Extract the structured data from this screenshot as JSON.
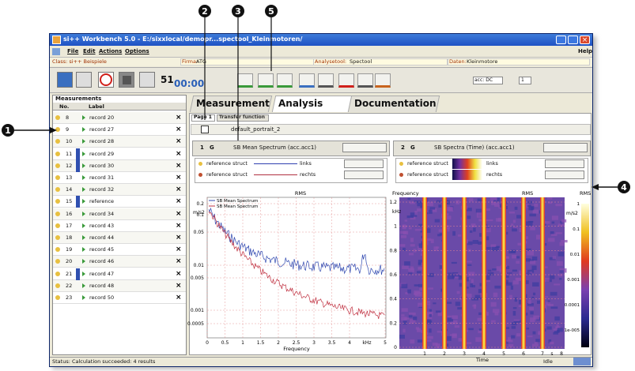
{
  "callouts": [
    "1",
    "2",
    "3",
    "4",
    "5"
  ],
  "window": {
    "title": "si++ Workbench 5.0 - E:/sixxlocal/demopr...spectool_Kleinmotoren/",
    "menu": [
      "File",
      "Edit",
      "Actions",
      "Options"
    ],
    "help": "Help"
  },
  "info": {
    "class": "Class: si++ Beispiele",
    "firma_label": "Firma:",
    "firma": "ATG",
    "analysetool_label": "Analysetool:",
    "analysetool": "Spectool",
    "daten_label": "Daten:",
    "daten": "Kleinmotore"
  },
  "toolbar": {
    "counter": "51",
    "time": "00:00",
    "acc": "acc: DC",
    "channel": "1"
  },
  "measurements": {
    "title": "Measurements",
    "headers": [
      "No.",
      "Label"
    ],
    "rows": [
      [
        "8",
        "record 20"
      ],
      [
        "9",
        "record 27"
      ],
      [
        "10",
        "record 28"
      ],
      [
        "11",
        "record 29"
      ],
      [
        "12",
        "record 30"
      ],
      [
        "13",
        "record 31"
      ],
      [
        "14",
        "record 32"
      ],
      [
        "15",
        "reference"
      ],
      [
        "16",
        "record 34"
      ],
      [
        "17",
        "record 43"
      ],
      [
        "18",
        "record 44"
      ],
      [
        "19",
        "record 45"
      ],
      [
        "20",
        "record 46"
      ],
      [
        "21",
        "record 47"
      ],
      [
        "22",
        "record 48"
      ],
      [
        "23",
        "record 50"
      ]
    ]
  },
  "tabs": [
    "Measurement",
    "Analysis",
    "Documentation"
  ],
  "subtabs": [
    "Page 1",
    "Transfer function"
  ],
  "page_name": "default_portrait_2",
  "panels": [
    {
      "number": "1",
      "mode": "G",
      "title": "SB Mean Spectrum (acc.acc1)",
      "rows": [
        {
          "source": "reference struct",
          "channel": "links"
        },
        {
          "source": "reference struct",
          "channel": "rechts"
        }
      ]
    },
    {
      "number": "2",
      "mode": "G",
      "title": "SB Spectra (Time) (acc.acc1)",
      "rows": [
        {
          "source": "reference struct",
          "channel": "links"
        },
        {
          "source": "reference struct",
          "channel": "rechts"
        }
      ]
    }
  ],
  "spectrum_plot": {
    "legend": [
      "SB Mean Spectrum",
      "SB Mean Spectrum"
    ],
    "top_label": "RMS",
    "y_unit": "m/s2",
    "yticks": [
      "0.2",
      "0.1",
      "0.05",
      "0.01",
      "0.005",
      "0.001",
      "0.0005"
    ],
    "xticks": [
      "0",
      "0.5",
      "1",
      "1.5",
      "2",
      "2.5",
      "3",
      "3.5",
      "4",
      "5"
    ],
    "x_unit": "kHz",
    "xlabel": "Frequency"
  },
  "spectrogram_plot": {
    "ylabel": "Frequency",
    "y_unit": "kHz",
    "yticks": [
      "1.2",
      "1",
      "0.8",
      "0.6",
      "0.4",
      "0.2",
      "0"
    ],
    "top_label": "RMS",
    "colorbar_label": "RMS",
    "colorbar_unit": "m/s2",
    "colorbar_ticks": [
      "1",
      "0.1",
      "0.01",
      "0.001",
      "0.0001",
      "1e-005"
    ],
    "xticks": [
      "1",
      "2",
      "3",
      "4",
      "5",
      "6",
      "7",
      "8"
    ],
    "x_unit": "s",
    "xlabel": "Time"
  },
  "status": {
    "text": "Status: Calculation succeeded: 4 results",
    "state": "Idle"
  }
}
